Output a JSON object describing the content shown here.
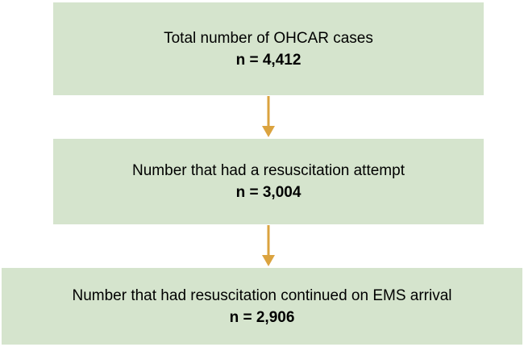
{
  "nodes": [
    {
      "label": "Total number of OHCAR cases",
      "count": "n = 4,412"
    },
    {
      "label": "Number that had a resuscitation attempt",
      "count": "n = 3,004"
    },
    {
      "label": "Number that had resuscitation continued on EMS arrival",
      "count": "n = 2,906"
    }
  ]
}
